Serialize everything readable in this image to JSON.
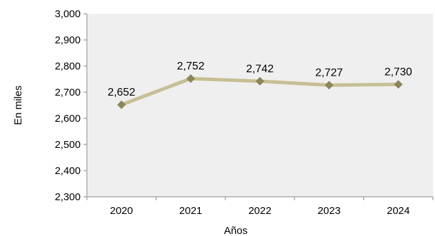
{
  "chart_data": {
    "type": "line",
    "title": "",
    "xlabel": "Años",
    "ylabel": "En miles",
    "categories": [
      "2020",
      "2021",
      "2022",
      "2023",
      "2024"
    ],
    "series": [
      {
        "values": [
          2652,
          2752,
          2742,
          2727,
          2730
        ]
      }
    ],
    "data_labels": [
      "2,652",
      "2,752",
      "2,742",
      "2,727",
      "2,730"
    ],
    "ylim": [
      2300,
      3000
    ],
    "yticks": [
      2300,
      2400,
      2500,
      2600,
      2700,
      2800,
      2900,
      3000
    ],
    "ytick_labels": [
      "2,300",
      "2,400",
      "2,500",
      "2,600",
      "2,700",
      "2,800",
      "2,900",
      "3,000"
    ],
    "grid": false,
    "legend": "none",
    "colors": {
      "plot_background": "#efefef",
      "line": "#c7bf95",
      "marker": "#8c8658",
      "axis": "#888888"
    }
  }
}
